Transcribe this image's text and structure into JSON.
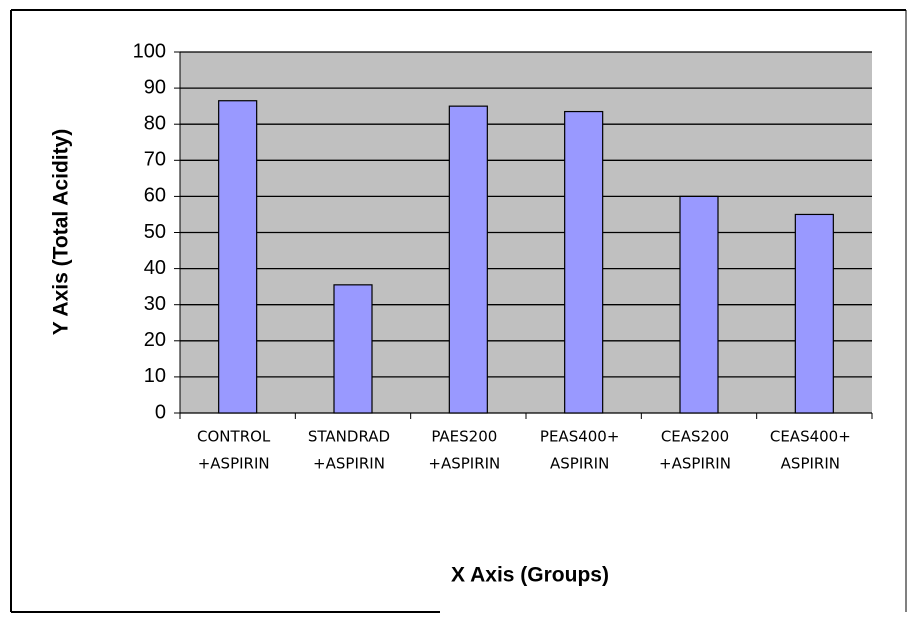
{
  "chart_data": {
    "type": "bar",
    "x_label": "X Axis (Groups)",
    "y_label": "Y Axis (Total Acidity)",
    "categories": [
      [
        "CONTROL",
        "+ASPIRIN"
      ],
      [
        "STANDRAD",
        "+ASPIRIN"
      ],
      [
        "PAES200",
        "+ASPIRIN"
      ],
      [
        "PEAS400+",
        "ASPIRIN"
      ],
      [
        "CEAS200",
        "+ASPIRIN"
      ],
      [
        "CEAS400+",
        "ASPIRIN"
      ]
    ],
    "values": [
      86.5,
      35.5,
      85,
      83.5,
      60,
      55
    ],
    "color": "#9999ff",
    "ylim": [
      0,
      100
    ],
    "yticks": [
      0,
      10,
      20,
      30,
      40,
      50,
      60,
      70,
      80,
      90,
      100
    ],
    "grid": true
  }
}
